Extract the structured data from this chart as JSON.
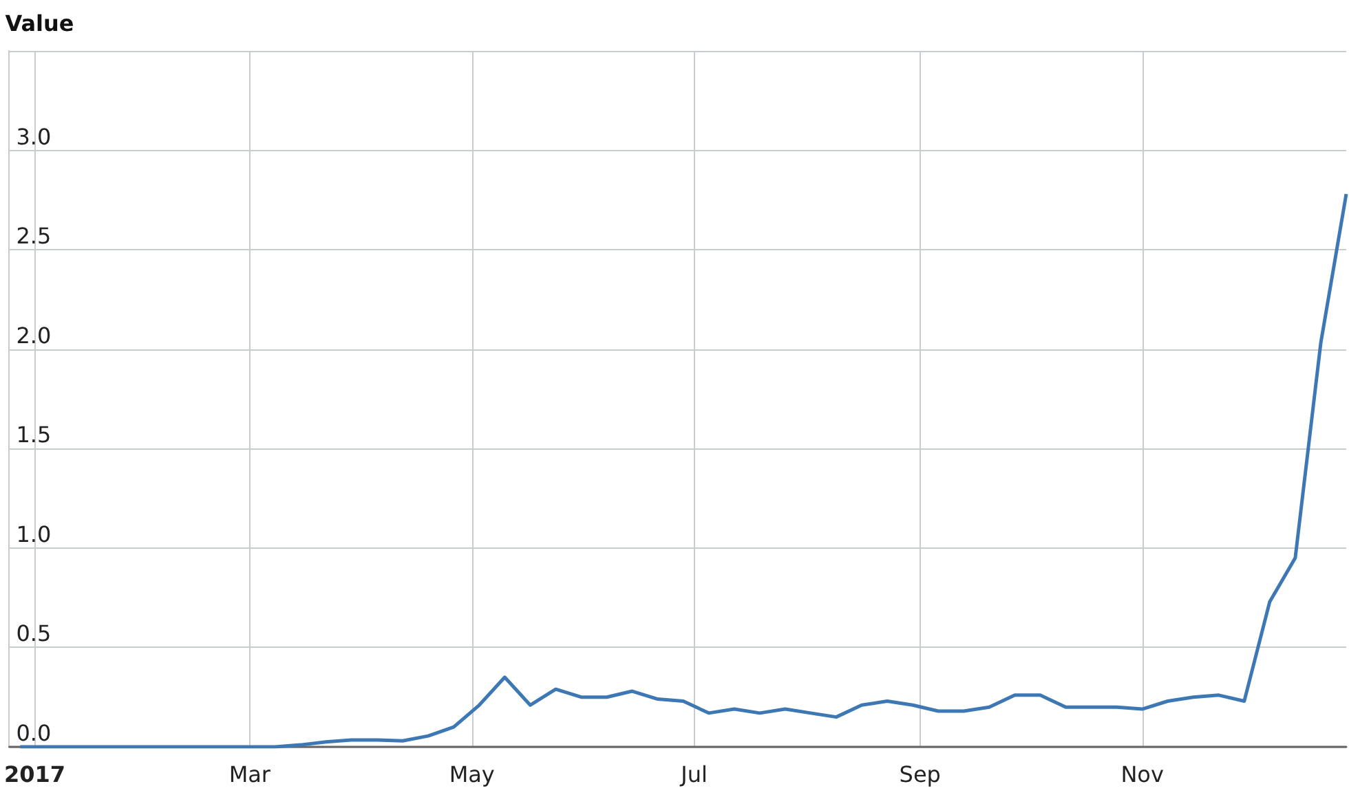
{
  "chart_data": {
    "type": "line",
    "ylabel": "Value",
    "x": [
      "2016-12-28",
      "2017-01-04",
      "2017-01-11",
      "2017-01-18",
      "2017-01-25",
      "2017-02-01",
      "2017-02-08",
      "2017-02-15",
      "2017-02-22",
      "2017-03-01",
      "2017-03-08",
      "2017-03-15",
      "2017-03-22",
      "2017-03-29",
      "2017-04-05",
      "2017-04-12",
      "2017-04-19",
      "2017-04-26",
      "2017-05-03",
      "2017-05-10",
      "2017-05-17",
      "2017-05-24",
      "2017-05-31",
      "2017-06-07",
      "2017-06-14",
      "2017-06-21",
      "2017-06-28",
      "2017-07-05",
      "2017-07-12",
      "2017-07-19",
      "2017-07-26",
      "2017-08-02",
      "2017-08-09",
      "2017-08-16",
      "2017-08-23",
      "2017-08-30",
      "2017-09-06",
      "2017-09-13",
      "2017-09-20",
      "2017-09-27",
      "2017-10-04",
      "2017-10-11",
      "2017-10-18",
      "2017-10-25",
      "2017-11-01",
      "2017-11-08",
      "2017-11-15",
      "2017-11-22",
      "2017-11-29",
      "2017-12-06",
      "2017-12-13",
      "2017-12-20",
      "2017-12-27"
    ],
    "series": [
      {
        "color": "#3d78b5",
        "values": [
          0,
          0,
          0,
          0,
          0,
          0,
          0,
          0,
          0,
          0,
          0,
          0.01,
          0.025,
          0.035,
          0.035,
          0.03,
          0.055,
          0.1,
          0.21,
          0.35,
          0.21,
          0.29,
          0.25,
          0.25,
          0.28,
          0.24,
          0.23,
          0.17,
          0.19,
          0.17,
          0.19,
          0.17,
          0.15,
          0.21,
          0.23,
          0.21,
          0.18,
          0.18,
          0.2,
          0.26,
          0.26,
          0.2,
          0.2,
          0.2,
          0.19,
          0.23,
          0.25,
          0.26,
          0.23,
          0.73,
          0.95,
          2.03,
          2.78
        ]
      }
    ],
    "xlim": [
      "2016-12-25",
      "2017-12-27"
    ],
    "xticks": [
      {
        "value": "2017-01-01",
        "label": "2017"
      },
      {
        "value": "2017-03-01",
        "label": "Mar"
      },
      {
        "value": "2017-05-01",
        "label": "May"
      },
      {
        "value": "2017-07-01",
        "label": "Jul"
      },
      {
        "value": "2017-09-01",
        "label": "Sep"
      },
      {
        "value": "2017-11-01",
        "label": "Nov"
      }
    ],
    "ylim": [
      0,
      3.5
    ],
    "yticks": [
      {
        "value": 0,
        "label": "0.0"
      },
      {
        "value": 0.5,
        "label": "0.5"
      },
      {
        "value": 1,
        "label": "1.0"
      },
      {
        "value": 1.5,
        "label": "1.5"
      },
      {
        "value": 2,
        "label": "2.0"
      },
      {
        "value": 2.5,
        "label": "2.5"
      },
      {
        "value": 3,
        "label": "3.0"
      },
      {
        "value": 3.5,
        "label": null
      }
    ],
    "grid": true,
    "marker": "none",
    "line_style": "solid"
  }
}
